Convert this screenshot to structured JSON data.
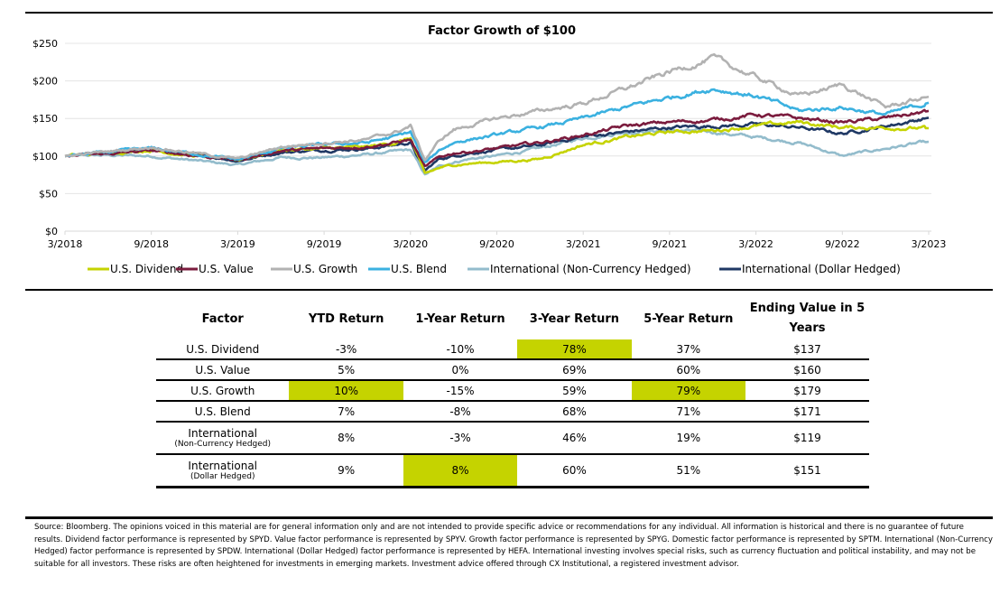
{
  "chart_data": {
    "type": "line",
    "title": "Factor Growth of $100",
    "xlabel": "",
    "ylabel": "",
    "ylim": [
      0,
      250
    ],
    "yticks": [
      0,
      50,
      100,
      150,
      200,
      250
    ],
    "ytick_labels": [
      "$0",
      "$50",
      "$100",
      "$150",
      "$200",
      "$250"
    ],
    "xticks": [
      "3/2018",
      "9/2018",
      "3/2019",
      "9/2019",
      "3/2020",
      "9/2020",
      "3/2021",
      "9/2021",
      "3/2022",
      "9/2022",
      "3/2023"
    ],
    "x_range": [
      "3/2018",
      "3/2023"
    ],
    "grid": "horizontal",
    "legend_position": "bottom",
    "x_months_from_start": [
      0,
      3,
      6,
      9,
      12,
      15,
      18,
      21,
      23,
      24,
      25,
      26,
      27,
      28,
      30,
      33,
      36,
      39,
      42,
      45,
      48,
      51,
      54,
      57,
      60
    ],
    "series": [
      {
        "name": "U.S. Dividend",
        "color": "#c5d300",
        "values": [
          100,
          104,
          108,
          100,
          95,
          108,
          110,
          112,
          118,
          124,
          76,
          84,
          88,
          90,
          92,
          96,
          115,
          125,
          132,
          134,
          140,
          145,
          138,
          138,
          137
        ]
      },
      {
        "name": "U.S. Value",
        "color": "#7b1c3e",
        "values": [
          100,
          103,
          107,
          101,
          95,
          107,
          110,
          113,
          118,
          122,
          85,
          98,
          104,
          106,
          110,
          118,
          128,
          140,
          145,
          148,
          155,
          150,
          145,
          150,
          160
        ]
      },
      {
        "name": "U.S. Growth",
        "color": "#b2b2b2",
        "values": [
          100,
          106,
          112,
          104,
          96,
          112,
          118,
          122,
          132,
          140,
          95,
          120,
          135,
          140,
          150,
          160,
          170,
          190,
          212,
          230,
          205,
          180,
          195,
          165,
          179
        ]
      },
      {
        "name": "U.S. Blend",
        "color": "#3bb1e0",
        "values": [
          100,
          105,
          110,
          103,
          95,
          110,
          115,
          118,
          126,
          132,
          90,
          108,
          118,
          122,
          128,
          138,
          150,
          165,
          178,
          190,
          180,
          160,
          165,
          155,
          171
        ]
      },
      {
        "name": "International (Non-Currency Hedged)",
        "color": "#93bccc",
        "values": [
          100,
          101,
          100,
          94,
          88,
          98,
          98,
          102,
          106,
          108,
          75,
          86,
          92,
          96,
          100,
          110,
          124,
          132,
          134,
          132,
          125,
          118,
          100,
          110,
          119
        ]
      },
      {
        "name": "International (Dollar Hedged)",
        "color": "#1f3864",
        "values": [
          100,
          104,
          108,
          102,
          94,
          105,
          108,
          110,
          115,
          118,
          80,
          96,
          100,
          104,
          108,
          114,
          126,
          132,
          138,
          140,
          142,
          138,
          130,
          140,
          151
        ]
      }
    ]
  },
  "table": {
    "headers": [
      "Factor",
      "YTD Return",
      "1-Year Return",
      "3-Year Return",
      "5-Year Return",
      "Ending Value in 5 Years"
    ],
    "rows": [
      {
        "factor": "U.S. Dividend",
        "factor_sub": "",
        "ytd": "-3%",
        "one_year": "-10%",
        "three_year": "78%",
        "five_year": "37%",
        "ending_value": "$137",
        "highlight": [
          "three_year"
        ]
      },
      {
        "factor": "U.S. Value",
        "factor_sub": "",
        "ytd": "5%",
        "one_year": "0%",
        "three_year": "69%",
        "five_year": "60%",
        "ending_value": "$160",
        "highlight": []
      },
      {
        "factor": "U.S. Growth",
        "factor_sub": "",
        "ytd": "10%",
        "one_year": "-15%",
        "three_year": "59%",
        "five_year": "79%",
        "ending_value": "$179",
        "highlight": [
          "ytd",
          "five_year"
        ]
      },
      {
        "factor": "U.S. Blend",
        "factor_sub": "",
        "ytd": "7%",
        "one_year": "-8%",
        "three_year": "68%",
        "five_year": "71%",
        "ending_value": "$171",
        "highlight": []
      },
      {
        "factor": "International",
        "factor_sub": "(Non-Currency Hedged)",
        "ytd": "8%",
        "one_year": "-3%",
        "three_year": "46%",
        "five_year": "19%",
        "ending_value": "$119",
        "highlight": []
      },
      {
        "factor": "International",
        "factor_sub": "(Dollar Hedged)",
        "ytd": "9%",
        "one_year": "8%",
        "three_year": "60%",
        "five_year": "51%",
        "ending_value": "$151",
        "highlight": [
          "one_year"
        ]
      }
    ],
    "highlight_color": "#c5d300"
  },
  "footnote": "Source: Bloomberg. The opinions voiced in this material are for general information only and are not intended to provide specific advice or recommendations for any individual.  All information is historical and there is no guarantee of future results. Dividend factor performance is represented by SPYD. Value factor performance is represented by SPYV. Growth factor performance is represented by SPYG. Domestic factor performance is represented by SPTM. International (Non-Currency Hedged) factor performance is represented by SPDW. International (Dollar Hedged) factor performance is represented by HEFA. International investing involves special risks, such as currency fluctuation and political instability, and may not be suitable for all investors. These risks are often heightened for investments in emerging markets. Investment advice offered through CX Institutional, a registered investment advisor."
}
